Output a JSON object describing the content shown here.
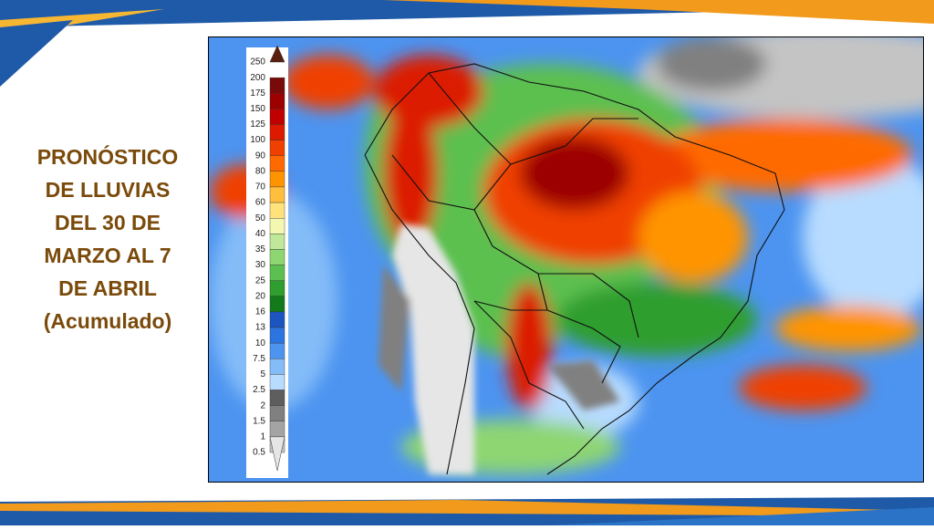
{
  "title": {
    "lines": [
      "PRONÓSTICO",
      "DE LLUVIAS",
      "DEL 30 DE",
      "MARZO AL 7",
      "DE ABRIL",
      "(Acumulado)"
    ]
  },
  "legend": {
    "items": [
      {
        "label": "250",
        "color": "#5a1e0e"
      },
      {
        "label": "200",
        "color": "#7a0a0a"
      },
      {
        "label": "175",
        "color": "#9c0000"
      },
      {
        "label": "150",
        "color": "#c00000"
      },
      {
        "label": "125",
        "color": "#dc1a00"
      },
      {
        "label": "100",
        "color": "#f04000"
      },
      {
        "label": "90",
        "color": "#ff6a00"
      },
      {
        "label": "80",
        "color": "#ff9400"
      },
      {
        "label": "70",
        "color": "#ffbe3c"
      },
      {
        "label": "60",
        "color": "#ffe27a"
      },
      {
        "label": "50",
        "color": "#f4f7b0"
      },
      {
        "label": "40",
        "color": "#bfe89a"
      },
      {
        "label": "35",
        "color": "#8ed672"
      },
      {
        "label": "30",
        "color": "#5cc050"
      },
      {
        "label": "25",
        "color": "#2e9e2e"
      },
      {
        "label": "20",
        "color": "#127a1a"
      },
      {
        "label": "16",
        "color": "#1c54c0"
      },
      {
        "label": "13",
        "color": "#2c74e0"
      },
      {
        "label": "10",
        "color": "#4c94f0"
      },
      {
        "label": "7.5",
        "color": "#84bcf8"
      },
      {
        "label": "5",
        "color": "#b8dcff"
      },
      {
        "label": "2.5",
        "color": "#5e5e5e"
      },
      {
        "label": "2",
        "color": "#808080"
      },
      {
        "label": "1.5",
        "color": "#a4a4a4"
      },
      {
        "label": "1",
        "color": "#c4c4c4"
      },
      {
        "label": "0.5",
        "color": "#e6e6e6"
      }
    ]
  }
}
